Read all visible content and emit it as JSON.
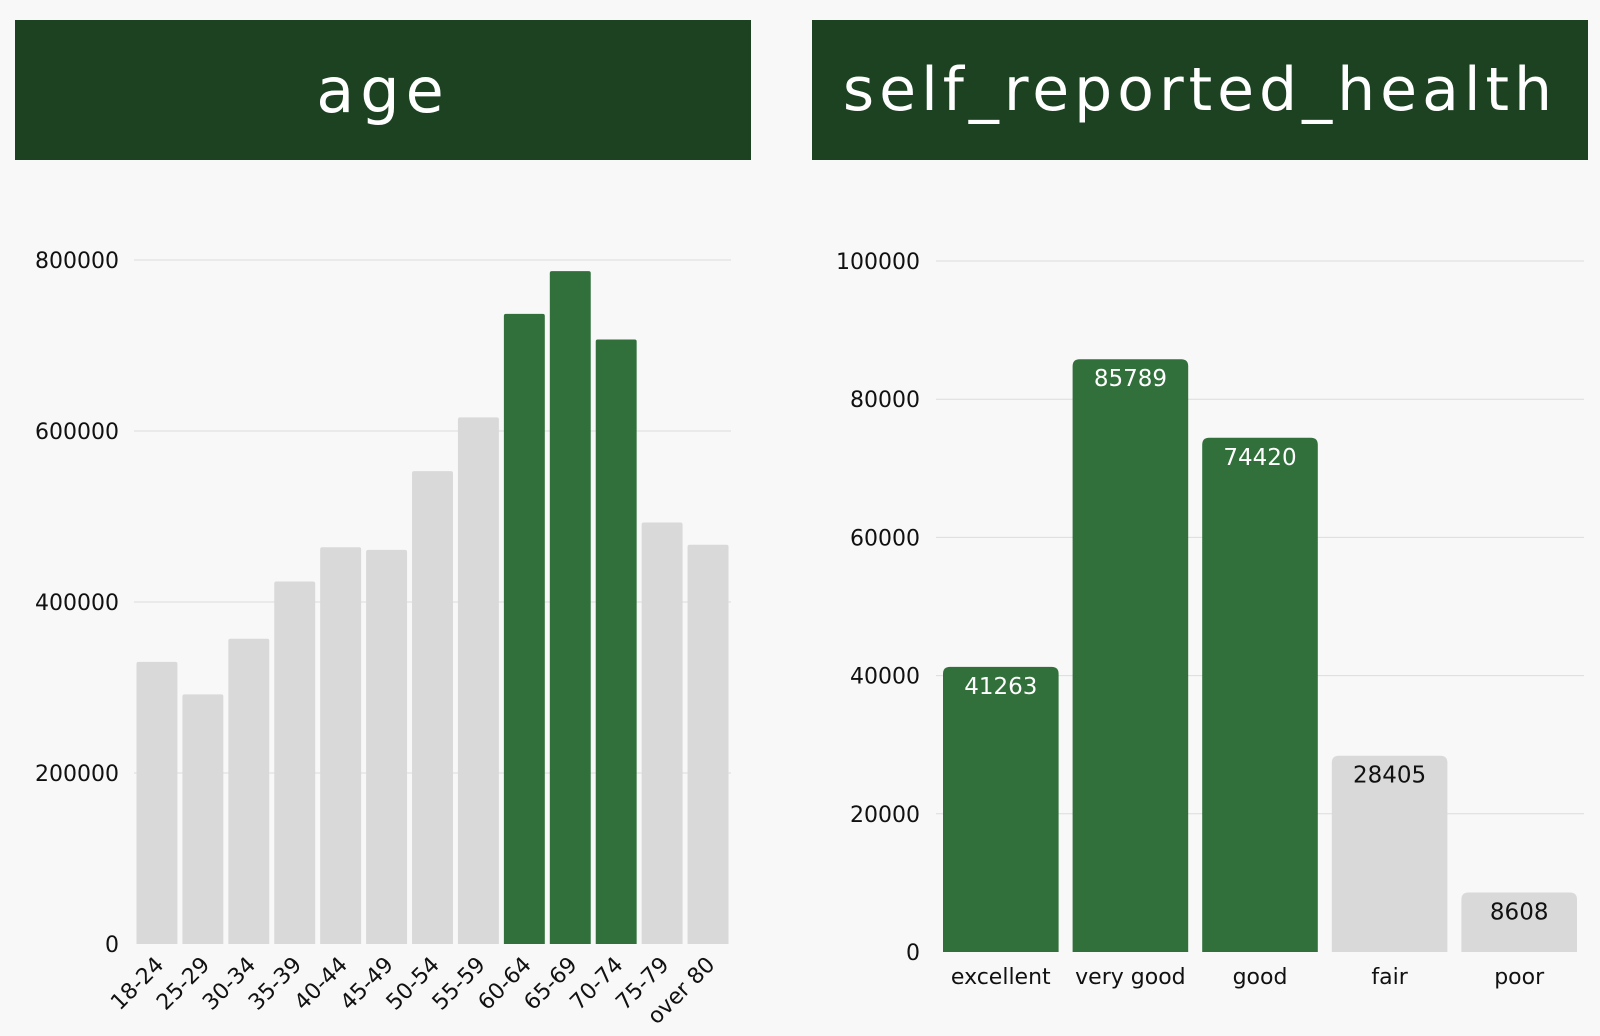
{
  "colors": {
    "header_bg": "#1c4222",
    "header_text": "#ffffff",
    "highlight": "#31703a",
    "muted": "#d9d9d9",
    "gridline": "#dcdcdc",
    "background": "#f8f8f8"
  },
  "chart_data": [
    {
      "type": "bar",
      "title": "age",
      "xlabel": "",
      "ylabel": "",
      "categories": [
        "18-24",
        "25-29",
        "30-34",
        "35-39",
        "40-44",
        "45-49",
        "50-54",
        "55-59",
        "60-64",
        "65-69",
        "70-74",
        "75-79",
        "over 80"
      ],
      "values": [
        330000,
        292000,
        357000,
        424000,
        464000,
        461000,
        553000,
        616000,
        737000,
        787000,
        707000,
        493000,
        467000
      ],
      "highlighted": [
        false,
        false,
        false,
        false,
        false,
        false,
        false,
        false,
        true,
        true,
        true,
        false,
        false
      ],
      "yticks": [
        0,
        200000,
        400000,
        600000,
        800000
      ],
      "tick_labels": [
        "0",
        "200000",
        "400000",
        "600000",
        "800000"
      ],
      "ylim": [
        0,
        800000
      ],
      "grid": true,
      "data_labels": false
    },
    {
      "type": "bar",
      "title": "self_reported_health",
      "xlabel": "",
      "ylabel": "",
      "categories": [
        "excellent",
        "very good",
        "good",
        "fair",
        "poor"
      ],
      "values": [
        41263,
        85789,
        74420,
        28405,
        8608
      ],
      "value_labels": [
        "41263",
        "85789",
        "74420",
        "28405",
        "8608"
      ],
      "highlighted": [
        true,
        true,
        true,
        false,
        false
      ],
      "yticks": [
        0,
        20000,
        40000,
        60000,
        80000,
        100000
      ],
      "tick_labels": [
        "0",
        "20000",
        "40000",
        "60000",
        "80000",
        "100000"
      ],
      "ylim": [
        0,
        100000
      ],
      "grid": true,
      "data_labels": true
    }
  ]
}
